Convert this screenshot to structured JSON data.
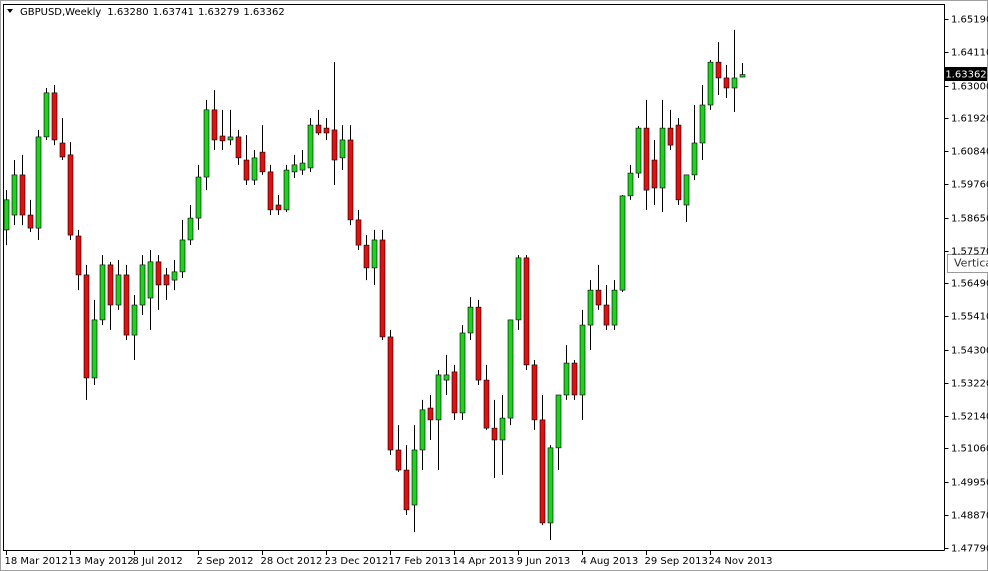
{
  "chart_data": {
    "type": "candlestick",
    "title": "GBPUSD,Weekly",
    "quote_labels": [
      "1.63280",
      "1.63741",
      "1.63279",
      "1.63362"
    ],
    "tooltip": "Vertica",
    "up_color": "#1fd21f",
    "down_color": "#e31010",
    "wick_color": "#000000",
    "ylim": [
      1.4772,
      1.6565
    ],
    "yticks": [
      {
        "value": 1.6519,
        "label": "1.65190"
      },
      {
        "value": 1.6411,
        "label": "1.64110"
      },
      {
        "value": 1.63,
        "label": "1.63000"
      },
      {
        "value": 1.6192,
        "label": "1.61920"
      },
      {
        "value": 1.6084,
        "label": "1.60840"
      },
      {
        "value": 1.5976,
        "label": "1.59760"
      },
      {
        "value": 1.5865,
        "label": "1.58650"
      },
      {
        "value": 1.5757,
        "label": "1.57570"
      },
      {
        "value": 1.5649,
        "label": "1.56490"
      },
      {
        "value": 1.5541,
        "label": "1.55410"
      },
      {
        "value": 1.543,
        "label": "1.54300"
      },
      {
        "value": 1.5322,
        "label": "1.53220"
      },
      {
        "value": 1.5214,
        "label": "1.52140"
      },
      {
        "value": 1.5106,
        "label": "1.51060"
      },
      {
        "value": 1.4995,
        "label": "1.49950"
      },
      {
        "value": 1.4887,
        "label": "1.48870"
      },
      {
        "value": 1.4779,
        "label": "1.47790"
      }
    ],
    "categories": [
      "18 Mar 2012",
      null,
      null,
      null,
      null,
      null,
      null,
      null,
      "13 May 2012",
      null,
      null,
      null,
      null,
      null,
      null,
      null,
      "8 Jul 2012",
      null,
      null,
      null,
      null,
      null,
      null,
      null,
      "2 Sep 2012",
      null,
      null,
      null,
      null,
      null,
      null,
      null,
      "28 Oct 2012",
      null,
      null,
      null,
      null,
      null,
      null,
      null,
      "23 Dec 2012",
      null,
      null,
      null,
      null,
      null,
      null,
      null,
      "17 Feb 2013",
      null,
      null,
      null,
      null,
      null,
      null,
      null,
      "14 Apr 2013",
      null,
      null,
      null,
      null,
      null,
      null,
      null,
      "9 Jun 2013",
      null,
      null,
      null,
      null,
      null,
      null,
      null,
      "4 Aug 2013",
      null,
      null,
      null,
      null,
      null,
      null,
      null,
      "29 Sep 2013",
      null,
      null,
      null,
      null,
      null,
      null,
      null,
      "24 Nov 2013",
      null,
      null,
      null,
      null
    ],
    "open": [
      1.5825,
      1.5874,
      1.6006,
      1.5874,
      1.5831,
      1.6131,
      1.6276,
      1.6111,
      1.6072,
      1.5805,
      1.5677,
      1.5338,
      1.5529,
      1.571,
      1.5578,
      1.5677,
      1.5479,
      1.5578,
      1.5601,
      1.572,
      1.5677,
      1.566,
      1.5687,
      1.5792,
      1.5864,
      1.5999,
      1.622,
      1.6134,
      1.6121,
      1.6131,
      1.6055,
      1.5989,
      1.6081,
      1.6016,
      1.5907,
      1.5891,
      1.6016,
      1.6022,
      1.6029,
      1.617,
      1.616,
      1.6154,
      1.6062,
      1.6121,
      1.5858,
      1.5775,
      1.57,
      1.5792,
      1.5473,
      1.5101,
      1.5035,
      1.492,
      1.5101,
      1.5239,
      1.52,
      1.5331,
      1.5358,
      1.5223,
      1.5486,
      1.5571,
      1.5331,
      1.5173,
      1.5134,
      1.5206,
      1.5529,
      1.5733,
      1.5381,
      1.52,
      1.4861,
      1.5108,
      1.5282,
      1.5387,
      1.5282,
      1.5512,
      1.5627,
      1.5578,
      1.5512,
      1.5627,
      1.5937,
      1.6012,
      1.616,
      1.6055,
      1.5963,
      1.616,
      1.617,
      1.5907,
      1.6006,
      1.6111,
      1.6236,
      1.6377,
      1.6325,
      1.6292,
      1.6328
    ],
    "high": [
      1.5956,
      1.6055,
      1.6072,
      1.5924,
      1.6154,
      1.6292,
      1.6302,
      1.6193,
      1.6114,
      1.5825,
      1.571,
      1.5595,
      1.5742,
      1.572,
      1.5726,
      1.571,
      1.5611,
      1.5742,
      1.5759,
      1.5742,
      1.57,
      1.5726,
      1.5858,
      1.5907,
      1.6039,
      1.6253,
      1.6285,
      1.622,
      1.622,
      1.6154,
      1.6137,
      1.6088,
      1.617,
      1.6039,
      1.594,
      1.6039,
      1.6072,
      1.6088,
      1.6193,
      1.622,
      1.6193,
      1.6377,
      1.617,
      1.617,
      1.5891,
      1.5808,
      1.5825,
      1.5825,
      1.5496,
      1.5183,
      1.5117,
      1.5183,
      1.5266,
      1.5282,
      1.5364,
      1.5414,
      1.5381,
      1.5512,
      1.5604,
      1.5595,
      1.5381,
      1.5266,
      1.5282,
      1.5529,
      1.5742,
      1.5742,
      1.5397,
      1.5282,
      1.5117,
      1.5282,
      1.5446,
      1.5397,
      1.5562,
      1.566,
      1.571,
      1.5644,
      1.566,
      1.594,
      1.6039,
      1.6167,
      1.6253,
      1.6121,
      1.6253,
      1.622,
      1.6193,
      1.6006,
      1.6236,
      1.6302,
      1.6384,
      1.6443,
      1.6368,
      1.6483,
      1.63741
    ],
    "low": [
      1.5775,
      1.5841,
      1.5841,
      1.5818,
      1.5792,
      1.6121,
      1.6104,
      1.6055,
      1.5792,
      1.5627,
      1.5266,
      1.5315,
      1.5512,
      1.5496,
      1.5562,
      1.5463,
      1.5397,
      1.5545,
      1.5496,
      1.5562,
      1.5595,
      1.5627,
      1.5667,
      1.5775,
      1.5825,
      1.5956,
      1.6088,
      1.6088,
      1.6104,
      1.6039,
      1.5973,
      1.5973,
      1.6006,
      1.5874,
      1.5874,
      1.5884,
      1.5996,
      1.6006,
      1.6016,
      1.6137,
      1.6121,
      1.5973,
      1.6022,
      1.5841,
      1.5759,
      1.566,
      1.5644,
      1.5463,
      1.5085,
      1.5029,
      1.4887,
      1.4831,
      1.5035,
      1.5134,
      1.5035,
      1.5282,
      1.52,
      1.52,
      1.5463,
      1.5315,
      1.5167,
      1.5009,
      1.5019,
      1.5183,
      1.5496,
      1.5364,
      1.5167,
      1.4854,
      1.4805,
      1.5035,
      1.5266,
      1.5266,
      1.52,
      1.543,
      1.5562,
      1.5496,
      1.5496,
      1.5621,
      1.5924,
      1.5996,
      1.5891,
      1.5907,
      1.5884,
      1.6088,
      1.5907,
      1.5851,
      1.5989,
      1.6055,
      1.622,
      1.6269,
      1.6259,
      1.6213,
      1.63279
    ],
    "close": [
      1.5924,
      1.6006,
      1.5874,
      1.5831,
      1.6131,
      1.6276,
      1.6121,
      1.6065,
      1.5808,
      1.5677,
      1.5338,
      1.5529,
      1.571,
      1.5578,
      1.5677,
      1.5479,
      1.5578,
      1.571,
      1.572,
      1.5644,
      1.5644,
      1.5687,
      1.5792,
      1.5864,
      1.5999,
      1.622,
      1.6121,
      1.6118,
      1.6131,
      1.6062,
      1.5989,
      1.6062,
      1.6016,
      1.5891,
      1.5891,
      1.6022,
      1.6039,
      1.6045,
      1.617,
      1.6144,
      1.6144,
      1.6055,
      1.6121,
      1.5858,
      1.5775,
      1.57,
      1.5792,
      1.5473,
      1.5101,
      1.5035,
      1.4904,
      1.5101,
      1.5233,
      1.52,
      1.5348,
      1.5348,
      1.5223,
      1.5486,
      1.5571,
      1.5331,
      1.5173,
      1.5134,
      1.5206,
      1.5529,
      1.5733,
      1.5381,
      1.52,
      1.4861,
      1.5108,
      1.5282,
      1.5387,
      1.5282,
      1.5512,
      1.5627,
      1.5578,
      1.5512,
      1.5627,
      1.5937,
      1.6012,
      1.616,
      1.5956,
      1.5963,
      1.616,
      1.6104,
      1.5924,
      1.6006,
      1.6111,
      1.6236,
      1.6377,
      1.6325,
      1.6292,
      1.6325,
      1.63362
    ]
  }
}
